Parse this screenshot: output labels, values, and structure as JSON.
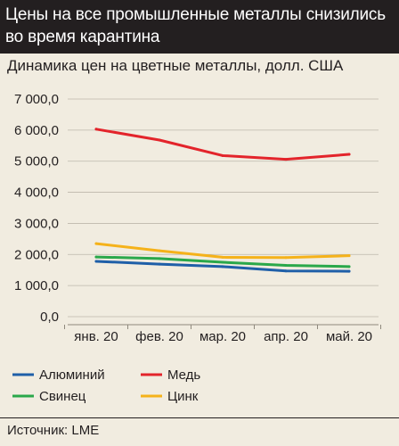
{
  "header": {
    "title_line1": "Цены на все промышленные металлы снизились",
    "title_line2": "во время  карантина"
  },
  "subtitle": "Динамика  цен на цветные  металлы, долл. США",
  "source": "Источник: LME",
  "chart_data": {
    "type": "line",
    "title": "Цены на все промышленные металлы снизились во время карантина",
    "subtitle": "Динамика цен на цветные металлы, долл. США",
    "categories": [
      "янв. 20",
      "фев. 20",
      "мар. 20",
      "апр. 20",
      "май. 20"
    ],
    "ylim": [
      0,
      7000
    ],
    "yticks": [
      0,
      1000,
      2000,
      3000,
      4000,
      5000,
      6000,
      7000
    ],
    "ytick_labels": [
      "0,0",
      "1 000,0",
      "2 000,0",
      "3 000,0",
      "4 000,0",
      "5 000,0",
      "6 000,0",
      "7 000,0"
    ],
    "grid": true,
    "legend_position": "bottom",
    "series": [
      {
        "name": "Алюминий",
        "color": "#1f5fa8",
        "values": [
          1780,
          1690,
          1610,
          1470,
          1460
        ]
      },
      {
        "name": "Медь",
        "color": "#e3242b",
        "values": [
          6030,
          5680,
          5180,
          5060,
          5220
        ]
      },
      {
        "name": "Свинец",
        "color": "#2aa84a",
        "values": [
          1920,
          1870,
          1750,
          1650,
          1610
        ]
      },
      {
        "name": "Цинк",
        "color": "#f5b21a",
        "values": [
          2350,
          2120,
          1910,
          1900,
          1960
        ]
      }
    ]
  }
}
